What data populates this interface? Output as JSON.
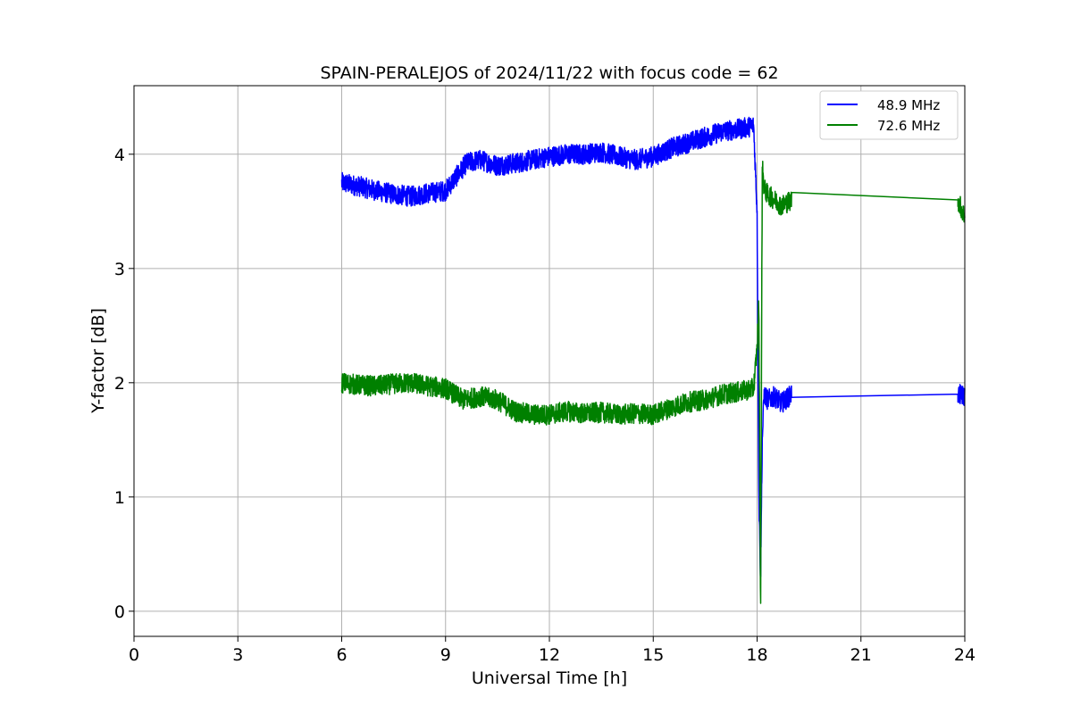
{
  "chart_data": {
    "type": "line",
    "title": "SPAIN-PERALEJOS of 2024/11/22 with focus code = 62",
    "xlabel": "Universal Time [h]",
    "ylabel": "Y-factor [dB]",
    "xlim": [
      0,
      24
    ],
    "ylim": [
      -0.22,
      4.6
    ],
    "xticks": [
      0,
      3,
      6,
      9,
      12,
      15,
      18,
      21,
      24
    ],
    "yticks": [
      0,
      1,
      2,
      3,
      4
    ],
    "grid": true,
    "legend_position": "top-right",
    "series": [
      {
        "name": "48.9 MHz",
        "color": "#0000ff",
        "noise_amplitude": 0.09,
        "x": [
          6.0,
          6.5,
          7.0,
          7.5,
          8.0,
          8.5,
          9.0,
          9.3,
          9.6,
          10.0,
          10.5,
          11.0,
          11.5,
          12.0,
          12.5,
          13.0,
          13.5,
          14.0,
          14.5,
          15.0,
          15.5,
          16.0,
          16.5,
          17.0,
          17.5,
          17.9,
          18.0,
          18.05,
          18.1,
          18.15,
          18.2,
          18.3,
          18.5,
          18.7,
          19.0,
          23.8,
          24.0
        ],
        "y": [
          3.75,
          3.72,
          3.68,
          3.65,
          3.63,
          3.66,
          3.68,
          3.8,
          3.92,
          3.95,
          3.9,
          3.92,
          3.95,
          3.98,
          4.0,
          4.0,
          4.02,
          3.98,
          3.95,
          3.98,
          4.05,
          4.1,
          4.15,
          4.2,
          4.22,
          4.25,
          3.5,
          1.0,
          0.3,
          1.5,
          1.9,
          1.85,
          1.88,
          1.82,
          1.9,
          1.9,
          1.88
        ]
      },
      {
        "name": "72.6 MHz",
        "color": "#008000",
        "noise_amplitude": 0.09,
        "x": [
          6.0,
          6.5,
          7.0,
          7.5,
          8.0,
          8.5,
          9.0,
          9.5,
          10.0,
          10.5,
          11.0,
          11.5,
          12.0,
          12.5,
          13.0,
          13.5,
          14.0,
          14.5,
          15.0,
          15.5,
          16.0,
          16.5,
          17.0,
          17.5,
          17.9,
          18.0,
          18.05,
          18.1,
          18.15,
          18.2,
          18.3,
          18.5,
          18.7,
          19.0,
          23.8,
          24.0
        ],
        "y": [
          2.0,
          1.98,
          1.97,
          1.99,
          2.0,
          1.97,
          1.95,
          1.85,
          1.88,
          1.85,
          1.75,
          1.72,
          1.72,
          1.75,
          1.73,
          1.74,
          1.72,
          1.73,
          1.72,
          1.78,
          1.83,
          1.85,
          1.9,
          1.92,
          1.95,
          2.3,
          2.7,
          0.0,
          3.9,
          3.7,
          3.65,
          3.6,
          3.55,
          3.6,
          3.6,
          3.45
        ]
      }
    ]
  }
}
